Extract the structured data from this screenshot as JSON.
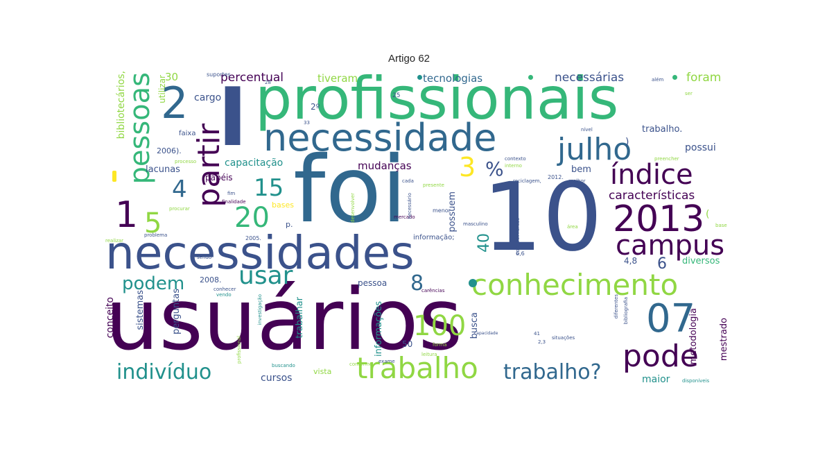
{
  "title": "Artigo 62",
  "palette": {
    "purple": "#440154",
    "indigo": "#3b528b",
    "blue": "#31688e",
    "teal": "#21918c",
    "green": "#35b779",
    "lime": "#90d743",
    "yellow": "#fde725"
  },
  "words": {
    "usuarios": "usuários",
    "foi": "foi",
    "n10": "10",
    "profissionais": "profissionais",
    "necessidades": "necessidades",
    "necessidade": "necessidade",
    "n2013": "2013",
    "conhecimento": "conhecimento",
    "trabalho": "trabalho",
    "trabalho_q": "trabalho?",
    "pode": "pode",
    "julho": "julho",
    "indice": "índice",
    "campus": "campus",
    "n07": "07",
    "n100": "100",
    "individuo": "indivíduo",
    "n2": "2",
    "I": "I",
    "pessoas": "pessoas",
    "partir": "partir",
    "usar": "usar",
    "podem": "podem",
    "n20": "20",
    "n15": "15",
    "n4": "4",
    "n1": "1",
    "n5": "5",
    "n3": "3",
    "pct": "%",
    "n8": "8",
    "n6": "6",
    "n40": "40",
    "caracteristicas": "características",
    "percentual": "percentual",
    "tiveram": "tiveram",
    "tecnologias": "tecnologias",
    "necessarias": "necessárias",
    "foram": "foram",
    "capacitacao": "capacitação",
    "mudancas": "mudanças",
    "lacunas": "lacunas",
    "papeis": "papéis",
    "cursos": "cursos",
    "vista": "vista",
    "maior": "maior",
    "possui": "possui",
    "possuem": "possuem",
    "bem": "bem",
    "trabalho_dot": "trabalho.",
    "cargo": "cargo",
    "n30": "30",
    "n2006": "2006).",
    "bibliotecarios": "bibliotecários,",
    "utilizar": "utilizar",
    "conceito": "conceito",
    "sistemas": "sistemas",
    "perguntas": "perguntas",
    "trabalhar": "trabalhar",
    "informacoes": "informações",
    "busca": "busca",
    "metodologia": "metodologia",
    "mestrado": "mestrado",
    "diversos": "diversos",
    "pessoa": "pessoa",
    "bases": "bases",
    "p": "p.",
    "n50": "50",
    "n48": "4,8",
    "n2008": "2008.",
    "informacao": "informação;",
    "faixa": "faixa",
    "suportes": "suportes",
    "n2o": "2º",
    "n2005": "2005.",
    "menor": "menor",
    "n66": "6,6",
    "n2012": "2012.",
    "realizar": "realizar",
    "problema": "problema",
    "finalidade": "finalidade",
    "conforme": "conforme",
    "mercado": "mercado",
    "processo": "processo",
    "presente": "presente",
    "situacoes": "situações",
    "procurar": "procurar",
    "forma": "forma",
    "leitura": "leitura",
    "carencias": "carências",
    "conhecer": "conhecer",
    "diferentes": "diferentes",
    "disponiveis": "disponíveis",
    "bibliografia": "bibliografia",
    "area": "área",
    "nivel": "nível",
    "melhor": "melhor",
    "preencher": "preencher",
    "reciclagem": "reciclagem,",
    "masculino": "masculino",
    "conhecimentos": "conhecimentos",
    "capacidade": "capacidade",
    "buscando": "buscando",
    "profissional": "profissional",
    "fim": "fim",
    "sendo": "sendo",
    "vendo": "vendo",
    "alem": "além",
    "ser": "ser",
    "n25": "25",
    "n28": "28",
    "n33": "33",
    "n41": "41",
    "n23": "2,3",
    "exame": "exame",
    "interno": "interno",
    "contexto": "contexto",
    "cada": "cada",
    "tanto": "tanto",
    "desenvolver": "desenvolver",
    "investigacao": "investigação",
    "necessario": "necessário",
    "seus": "seus",
    "base": "base",
    "grau": "grau",
    "pos": "pós",
    "tendo": "tendo",
    "paren": "(",
    "n3b": ")"
  }
}
